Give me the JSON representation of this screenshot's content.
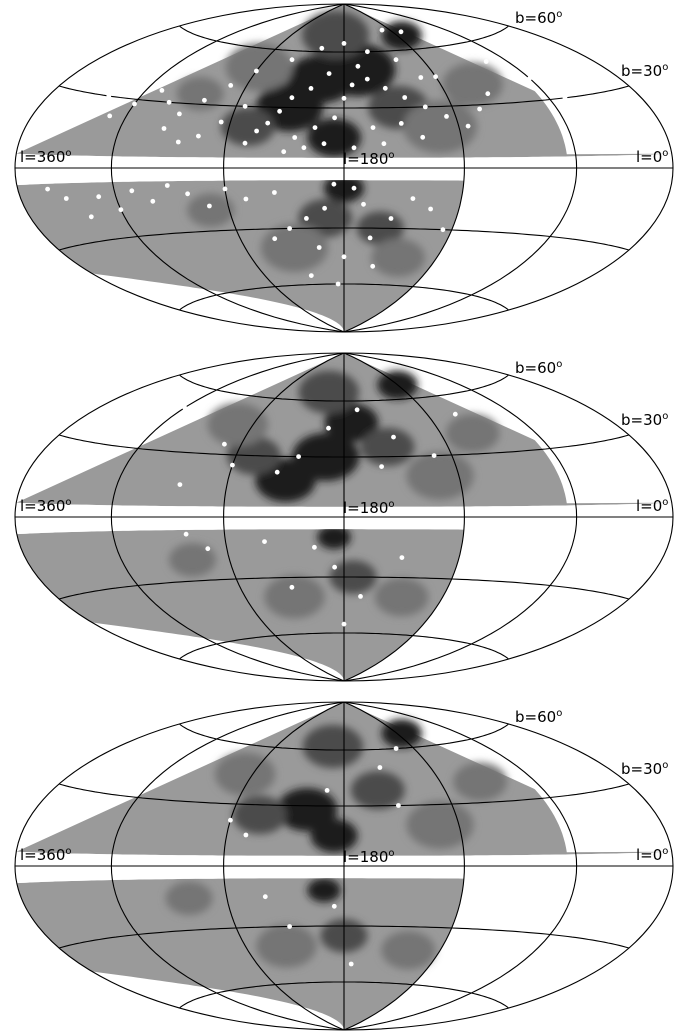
{
  "chart_data": [
    {
      "type": "scatter",
      "projection": "hammer-aitoff",
      "coordinates": "galactic",
      "title": "",
      "xlabel": "",
      "ylabel": "",
      "meridian_labels": {
        "left": "l=360",
        "center": "l=180",
        "right": "l=0"
      },
      "parallel_labels": {
        "b60": "b=60",
        "b30": "b=30"
      },
      "degree_mark": "o",
      "grid": true,
      "xlim": [
        0,
        360
      ],
      "ylim": [
        -90,
        90
      ],
      "density_levels": [
        "#9a9a9a",
        "#747474",
        "#4c4c4c",
        "#1e1e1e"
      ],
      "marker_color": "#ffffff",
      "density_blobs": [
        {
          "l": 190,
          "b": 50,
          "level": 3,
          "s": 22
        },
        {
          "l": 165,
          "b": 45,
          "level": 3,
          "s": 20
        },
        {
          "l": 150,
          "b": 30,
          "level": 3,
          "s": 20
        },
        {
          "l": 175,
          "b": 15,
          "level": 3,
          "s": 16
        },
        {
          "l": 245,
          "b": 68,
          "level": 3,
          "s": 12
        },
        {
          "l": 180,
          "b": -10,
          "level": 3,
          "s": 12
        },
        {
          "l": 170,
          "b": 70,
          "level": 2,
          "s": 20
        },
        {
          "l": 210,
          "b": 30,
          "level": 2,
          "s": 18
        },
        {
          "l": 130,
          "b": 20,
          "level": 2,
          "s": 16
        },
        {
          "l": 170,
          "b": -25,
          "level": 2,
          "s": 16
        },
        {
          "l": 200,
          "b": -30,
          "level": 2,
          "s": 14
        },
        {
          "l": 230,
          "b": 20,
          "level": 1,
          "s": 22
        },
        {
          "l": 120,
          "b": 50,
          "level": 1,
          "s": 20
        },
        {
          "l": 260,
          "b": 40,
          "level": 1,
          "s": 18
        },
        {
          "l": 150,
          "b": -40,
          "level": 1,
          "s": 20
        },
        {
          "l": 215,
          "b": -45,
          "level": 1,
          "s": 16
        },
        {
          "l": 110,
          "b": -20,
          "level": 1,
          "s": 14
        },
        {
          "l": 95,
          "b": 35,
          "level": 1,
          "s": 14
        }
      ],
      "points": [
        {
          "l": 190,
          "b": 52
        },
        {
          "l": 170,
          "b": 48
        },
        {
          "l": 160,
          "b": 40
        },
        {
          "l": 150,
          "b": 35
        },
        {
          "l": 145,
          "b": 28
        },
        {
          "l": 140,
          "b": 22
        },
        {
          "l": 135,
          "b": 18
        },
        {
          "l": 130,
          "b": 12
        },
        {
          "l": 155,
          "b": 15
        },
        {
          "l": 165,
          "b": 20
        },
        {
          "l": 175,
          "b": 25
        },
        {
          "l": 180,
          "b": 35
        },
        {
          "l": 185,
          "b": 42
        },
        {
          "l": 195,
          "b": 45
        },
        {
          "l": 205,
          "b": 40
        },
        {
          "l": 215,
          "b": 35
        },
        {
          "l": 225,
          "b": 30
        },
        {
          "l": 235,
          "b": 25
        },
        {
          "l": 245,
          "b": 20
        },
        {
          "l": 255,
          "b": 28
        },
        {
          "l": 265,
          "b": 35
        },
        {
          "l": 240,
          "b": 45
        },
        {
          "l": 220,
          "b": 55
        },
        {
          "l": 200,
          "b": 60
        },
        {
          "l": 180,
          "b": 65
        },
        {
          "l": 160,
          "b": 62
        },
        {
          "l": 140,
          "b": 55
        },
        {
          "l": 120,
          "b": 48
        },
        {
          "l": 110,
          "b": 40
        },
        {
          "l": 100,
          "b": 32
        },
        {
          "l": 90,
          "b": 25
        },
        {
          "l": 80,
          "b": 30
        },
        {
          "l": 70,
          "b": 35
        },
        {
          "l": 60,
          "b": 28
        },
        {
          "l": 50,
          "b": 22
        },
        {
          "l": 40,
          "b": 30
        },
        {
          "l": 30,
          "b": 25
        },
        {
          "l": 20,
          "b": 35
        },
        {
          "l": 285,
          "b": 50
        },
        {
          "l": 275,
          "b": 58
        },
        {
          "l": 250,
          "b": 70
        },
        {
          "l": 230,
          "b": 72
        },
        {
          "l": 300,
          "b": 40
        },
        {
          "l": 310,
          "b": 30
        },
        {
          "l": 170,
          "b": 12
        },
        {
          "l": 160,
          "b": 10
        },
        {
          "l": 150,
          "b": 8
        },
        {
          "l": 195,
          "b": 20
        },
        {
          "l": 200,
          "b": 12
        },
        {
          "l": 185,
          "b": 10
        },
        {
          "l": 125,
          "b": 30
        },
        {
          "l": 115,
          "b": 22
        },
        {
          "l": 105,
          "b": 15
        },
        {
          "l": 95,
          "b": 12
        },
        {
          "l": 85,
          "b": 18
        },
        {
          "l": 210,
          "b": 22
        },
        {
          "l": 220,
          "b": 15
        },
        {
          "l": 230,
          "b": 45
        },
        {
          "l": 175,
          "b": -8
        },
        {
          "l": 185,
          "b": -10
        },
        {
          "l": 170,
          "b": -20
        },
        {
          "l": 160,
          "b": -25
        },
        {
          "l": 150,
          "b": -30
        },
        {
          "l": 140,
          "b": -35
        },
        {
          "l": 165,
          "b": -40
        },
        {
          "l": 180,
          "b": -45
        },
        {
          "l": 195,
          "b": -35
        },
        {
          "l": 205,
          "b": -25
        },
        {
          "l": 215,
          "b": -15
        },
        {
          "l": 225,
          "b": -20
        },
        {
          "l": 235,
          "b": -30
        },
        {
          "l": 130,
          "b": -15
        },
        {
          "l": 120,
          "b": -10
        },
        {
          "l": 110,
          "b": -18
        },
        {
          "l": 100,
          "b": -12
        },
        {
          "l": 90,
          "b": -8
        },
        {
          "l": 80,
          "b": -15
        },
        {
          "l": 70,
          "b": -10
        },
        {
          "l": 60,
          "b": -18
        },
        {
          "l": 50,
          "b": -12
        },
        {
          "l": 40,
          "b": -20
        },
        {
          "l": 30,
          "b": -12
        },
        {
          "l": 20,
          "b": -8
        },
        {
          "l": 155,
          "b": -55
        },
        {
          "l": 175,
          "b": -60
        },
        {
          "l": 200,
          "b": -50
        },
        {
          "l": 245,
          "b": -15
        },
        {
          "l": 255,
          "b": -8
        },
        {
          "l": 145,
          "b": -12
        },
        {
          "l": 190,
          "b": -18
        }
      ]
    },
    {
      "type": "scatter",
      "projection": "hammer-aitoff",
      "coordinates": "galactic",
      "title": "",
      "xlabel": "",
      "ylabel": "",
      "meridian_labels": {
        "left": "l=360",
        "center": "l=180",
        "right": "l=0"
      },
      "parallel_labels": {
        "b60": "b=60",
        "b30": "b=30"
      },
      "degree_mark": "o",
      "grid": true,
      "xlim": [
        0,
        360
      ],
      "ylim": [
        -90,
        90
      ],
      "density_levels": [
        "#9a9a9a",
        "#747474",
        "#4c4c4c",
        "#1e1e1e"
      ],
      "marker_color": "#ffffff",
      "density_blobs": [
        {
          "l": 170,
          "b": 30,
          "level": 3,
          "s": 20
        },
        {
          "l": 150,
          "b": 18,
          "level": 3,
          "s": 18
        },
        {
          "l": 185,
          "b": 48,
          "level": 3,
          "s": 16
        },
        {
          "l": 240,
          "b": 68,
          "level": 3,
          "s": 12
        },
        {
          "l": 175,
          "b": -10,
          "level": 3,
          "s": 10
        },
        {
          "l": 130,
          "b": 30,
          "level": 2,
          "s": 16
        },
        {
          "l": 205,
          "b": 35,
          "level": 2,
          "s": 16
        },
        {
          "l": 165,
          "b": 65,
          "level": 2,
          "s": 18
        },
        {
          "l": 185,
          "b": -30,
          "level": 2,
          "s": 14
        },
        {
          "l": 230,
          "b": 20,
          "level": 1,
          "s": 20
        },
        {
          "l": 110,
          "b": 45,
          "level": 1,
          "s": 18
        },
        {
          "l": 260,
          "b": 40,
          "level": 1,
          "s": 16
        },
        {
          "l": 150,
          "b": -40,
          "level": 1,
          "s": 18
        },
        {
          "l": 215,
          "b": -40,
          "level": 1,
          "s": 16
        },
        {
          "l": 100,
          "b": -20,
          "level": 1,
          "s": 14
        }
      ],
      "points": [
        {
          "l": 190,
          "b": 55
        },
        {
          "l": 170,
          "b": 45
        },
        {
          "l": 155,
          "b": 30
        },
        {
          "l": 145,
          "b": 22
        },
        {
          "l": 210,
          "b": 40
        },
        {
          "l": 230,
          "b": 30
        },
        {
          "l": 260,
          "b": 50
        },
        {
          "l": 280,
          "b": 55
        },
        {
          "l": 120,
          "b": 25
        },
        {
          "l": 110,
          "b": 35
        },
        {
          "l": 95,
          "b": 15
        },
        {
          "l": 60,
          "b": 50
        },
        {
          "l": 50,
          "b": 42
        },
        {
          "l": 200,
          "b": 25
        },
        {
          "l": 165,
          "b": -15
        },
        {
          "l": 175,
          "b": -25
        },
        {
          "l": 150,
          "b": -35
        },
        {
          "l": 190,
          "b": -40
        },
        {
          "l": 140,
          "b": -12
        },
        {
          "l": 110,
          "b": -15
        },
        {
          "l": 100,
          "b": -8
        },
        {
          "l": 180,
          "b": -55
        },
        {
          "l": 210,
          "b": -20
        }
      ]
    },
    {
      "type": "scatter",
      "projection": "hammer-aitoff",
      "coordinates": "galactic",
      "title": "",
      "xlabel": "",
      "ylabel": "",
      "meridian_labels": {
        "left": "l=360",
        "center": "l=180",
        "right": "l=0"
      },
      "parallel_labels": {
        "b60": "b=60",
        "b30": "b=30"
      },
      "degree_mark": "o",
      "grid": true,
      "xlim": [
        0,
        360
      ],
      "ylim": [
        -90,
        90
      ],
      "density_levels": [
        "#9a9a9a",
        "#747474",
        "#4c4c4c",
        "#1e1e1e"
      ],
      "marker_color": "#ffffff",
      "density_blobs": [
        {
          "l": 160,
          "b": 28,
          "level": 3,
          "s": 18
        },
        {
          "l": 175,
          "b": 15,
          "level": 3,
          "s": 14
        },
        {
          "l": 245,
          "b": 68,
          "level": 3,
          "s": 12
        },
        {
          "l": 170,
          "b": -12,
          "level": 3,
          "s": 10
        },
        {
          "l": 135,
          "b": 25,
          "level": 2,
          "s": 16
        },
        {
          "l": 200,
          "b": 38,
          "level": 2,
          "s": 16
        },
        {
          "l": 170,
          "b": 62,
          "level": 2,
          "s": 18
        },
        {
          "l": 180,
          "b": -35,
          "level": 2,
          "s": 14
        },
        {
          "l": 230,
          "b": 20,
          "level": 1,
          "s": 20
        },
        {
          "l": 115,
          "b": 45,
          "level": 1,
          "s": 18
        },
        {
          "l": 265,
          "b": 40,
          "level": 1,
          "s": 16
        },
        {
          "l": 145,
          "b": -40,
          "level": 1,
          "s": 18
        },
        {
          "l": 220,
          "b": -42,
          "level": 1,
          "s": 16
        },
        {
          "l": 100,
          "b": -15,
          "level": 1,
          "s": 14
        }
      ],
      "points": [
        {
          "l": 225,
          "b": 60
        },
        {
          "l": 205,
          "b": 50
        },
        {
          "l": 170,
          "b": 38
        },
        {
          "l": 210,
          "b": 30
        },
        {
          "l": 75,
          "b": 45
        },
        {
          "l": 120,
          "b": 22
        },
        {
          "l": 130,
          "b": 15
        },
        {
          "l": 175,
          "b": -20
        },
        {
          "l": 150,
          "b": -30
        },
        {
          "l": 140,
          "b": -15
        },
        {
          "l": 185,
          "b": -50
        }
      ]
    }
  ]
}
